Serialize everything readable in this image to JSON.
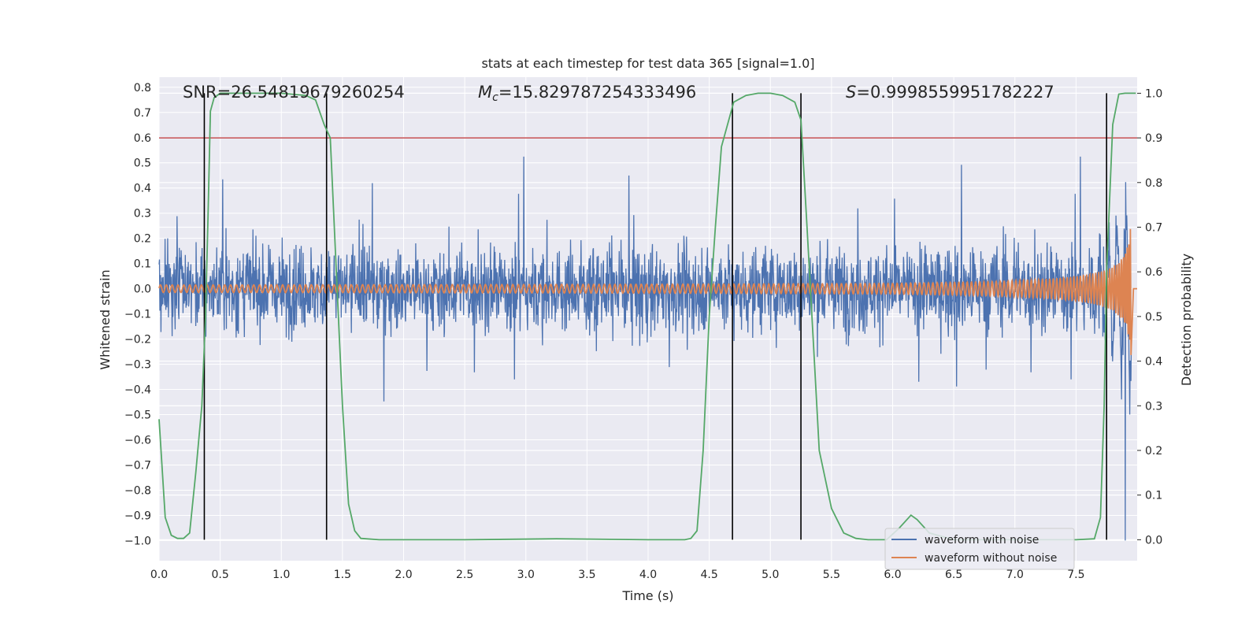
{
  "chart_data": {
    "type": "line",
    "title": "stats at each timestep for test data 365 [signal=1.0]",
    "xlabel": "Time (s)",
    "ylabel_left": "Whitened strain",
    "ylabel_right": "Detection probability",
    "xlim": [
      0.0,
      8.0
    ],
    "ylim_left": [
      -1.08,
      0.84
    ],
    "ylim_right": [
      -0.047,
      1.036
    ],
    "x_ticks": [
      "0.0",
      "0.5",
      "1.0",
      "1.5",
      "2.0",
      "2.5",
      "3.0",
      "3.5",
      "4.0",
      "4.5",
      "5.0",
      "5.5",
      "6.0",
      "6.5",
      "7.0",
      "7.5"
    ],
    "y_left_ticks": [
      "0.8",
      "0.7",
      "0.6",
      "0.5",
      "0.4",
      "0.3",
      "0.2",
      "0.1",
      "0.0",
      "−0.1",
      "−0.2",
      "−0.3",
      "−0.4",
      "−0.5",
      "−0.6",
      "−0.7",
      "−0.8",
      "−0.9",
      "−1.0"
    ],
    "y_right_ticks": [
      "1.0",
      "0.9",
      "0.8",
      "0.7",
      "0.6",
      "0.5",
      "0.4",
      "0.3",
      "0.2",
      "0.1",
      "0.0"
    ],
    "annotations": {
      "snr": "SNR=26.54819679260254",
      "mc_symbol": "M",
      "mc_sub": "c",
      "mc_value": "=15.829787254333496",
      "s_symbol": "S",
      "s_value": "=0.9998559951782227"
    },
    "legend": {
      "position": "lower-right",
      "entries": [
        "waveform with noise",
        "waveform without noise"
      ]
    },
    "colors": {
      "noise": "#4c72b0",
      "clean": "#dd8452",
      "probability": "#55a868",
      "threshold": "#c44e52",
      "markers": "#000000",
      "background": "#eaeaf2",
      "grid": "#ffffff"
    },
    "series": [
      {
        "name": "waveform with noise",
        "description_stats": {
          "typical_range": [
            -0.3,
            0.3
          ],
          "max": 0.66,
          "min": -0.76,
          "end_min": -1.0
        }
      },
      {
        "name": "waveform without noise",
        "chirp": {
          "start_amp": 0.015,
          "end_amp": 0.65,
          "t_merge": 7.95
        }
      },
      {
        "name": "Detection probability",
        "axis": "right",
        "x": [
          0.0,
          0.05,
          0.1,
          0.15,
          0.2,
          0.25,
          0.3,
          0.35,
          0.38,
          0.4,
          0.42,
          0.45,
          0.5,
          0.6,
          0.8,
          1.0,
          1.2,
          1.28,
          1.35,
          1.4,
          1.45,
          1.5,
          1.55,
          1.6,
          1.65,
          1.8,
          2.5,
          3.25,
          4.0,
          4.3,
          4.35,
          4.4,
          4.45,
          4.5,
          4.55,
          4.6,
          4.7,
          4.8,
          4.9,
          5.0,
          5.1,
          5.2,
          5.25,
          5.3,
          5.35,
          5.4,
          5.5,
          5.6,
          5.7,
          5.8,
          5.95,
          6.05,
          6.15,
          6.2,
          6.3,
          6.5,
          7.0,
          7.5,
          7.65,
          7.7,
          7.73,
          7.75,
          7.8,
          7.85,
          7.9,
          7.95,
          7.99
        ],
        "y": [
          0.27,
          0.05,
          0.01,
          0.003,
          0.003,
          0.015,
          0.15,
          0.3,
          0.5,
          0.72,
          0.96,
          0.99,
          1.0,
          1.0,
          1.0,
          1.0,
          0.995,
          0.985,
          0.93,
          0.9,
          0.6,
          0.3,
          0.08,
          0.02,
          0.003,
          0.0,
          0.0,
          0.002,
          0.0,
          0.0,
          0.003,
          0.02,
          0.2,
          0.5,
          0.7,
          0.88,
          0.98,
          0.995,
          1.0,
          1.0,
          0.995,
          0.98,
          0.94,
          0.7,
          0.45,
          0.2,
          0.07,
          0.015,
          0.003,
          0.0,
          0.0,
          0.025,
          0.055,
          0.045,
          0.015,
          0.0,
          0.0,
          0.0,
          0.002,
          0.05,
          0.3,
          0.6,
          0.93,
          0.998,
          1.0,
          1.0,
          1.0
        ]
      }
    ],
    "threshold_right": 0.9,
    "vertical_markers": [
      0.37,
      1.37,
      4.69,
      5.25,
      7.75
    ],
    "vertical_marker_range_right": [
      0.0,
      1.0
    ]
  }
}
